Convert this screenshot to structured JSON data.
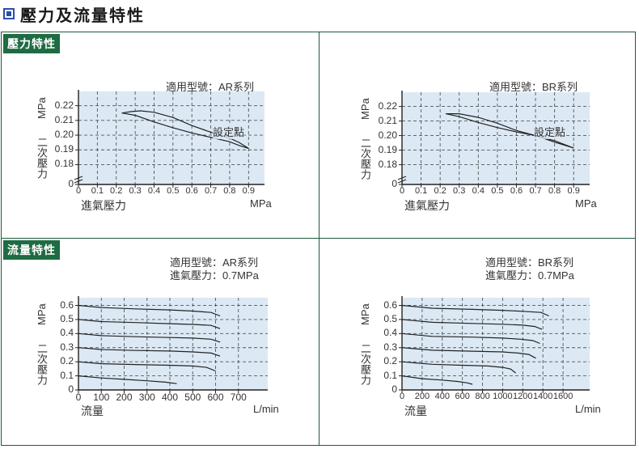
{
  "page": {
    "title": "壓力及流量特性",
    "section_pressure": "壓力特性",
    "section_flow": "流量特性"
  },
  "colors": {
    "accent": "#1f6b43",
    "title_icon": "#2b4fa8",
    "plot_bg": "#dce9f5"
  },
  "chart_data": [
    {
      "type": "line",
      "info": [
        "適用型號：AR系列"
      ],
      "annotation": "設定點",
      "y_unit": "MPa",
      "ylabel": "二次壓力",
      "x_unit": "MPa",
      "xlabel": "進氣壓力",
      "x_ticks": [
        "0",
        "0.1",
        "0.2",
        "0.3",
        "0.4",
        "0.5",
        "0.6",
        "0.7",
        "0.8",
        "0.9"
      ],
      "y_ticks": [
        "0",
        "0.18",
        "0.19",
        "0.20",
        "0.21",
        "0.22"
      ],
      "xlim": [
        0,
        0.95
      ],
      "ylim": [
        0.17,
        0.222
      ],
      "y_break": true,
      "series": [
        {
          "x": [
            0.23,
            0.28,
            0.33,
            0.4,
            0.5,
            0.6,
            0.7,
            0.75,
            0.8,
            0.85,
            0.9
          ],
          "y": [
            0.215,
            0.216,
            0.2165,
            0.2155,
            0.212,
            0.2065,
            0.202,
            0.2,
            0.198,
            0.195,
            0.191
          ]
        },
        {
          "x": [
            0.9,
            0.85,
            0.8,
            0.7,
            0.6,
            0.5,
            0.4,
            0.3,
            0.23
          ],
          "y": [
            0.191,
            0.193,
            0.1955,
            0.1985,
            0.2015,
            0.205,
            0.209,
            0.2135,
            0.215
          ]
        }
      ]
    },
    {
      "type": "line",
      "info": [
        "適用型號：BR系列"
      ],
      "annotation": "設定點",
      "y_unit": "MPa",
      "ylabel": "二次壓力",
      "x_unit": "MPa",
      "xlabel": "進氣壓力",
      "x_ticks": [
        "0",
        "0.1",
        "0.2",
        "0.3",
        "0.4",
        "0.5",
        "0.6",
        "0.7",
        "0.8",
        "0.9"
      ],
      "y_ticks": [
        "0",
        "0.18",
        "0.19",
        "0.20",
        "0.21",
        "0.22"
      ],
      "xlim": [
        0,
        0.95
      ],
      "ylim": [
        0.17,
        0.222
      ],
      "y_break": true,
      "series": [
        {
          "x": [
            0.23,
            0.3,
            0.4,
            0.5,
            0.6,
            0.7,
            0.8,
            0.9
          ],
          "y": [
            0.215,
            0.215,
            0.2125,
            0.2085,
            0.2035,
            0.2,
            0.1965,
            0.1915
          ]
        },
        {
          "x": [
            0.9,
            0.8,
            0.7,
            0.6,
            0.5,
            0.4,
            0.3,
            0.23
          ],
          "y": [
            0.1915,
            0.1955,
            0.2,
            0.2025,
            0.2055,
            0.209,
            0.213,
            0.215
          ]
        }
      ]
    },
    {
      "type": "line",
      "info": [
        "適用型號：AR系列",
        "進氣壓力：0.7MPa"
      ],
      "y_unit": "MPa",
      "ylabel": "二次壓力",
      "x_unit": "L/min",
      "xlabel": "流量",
      "x_ticks": [
        "0",
        "100",
        "200",
        "300",
        "400",
        "500",
        "600",
        "700"
      ],
      "y_ticks": [
        "0",
        "0.1",
        "0.2",
        "0.3",
        "0.4",
        "0.5",
        "0.6"
      ],
      "xlim": [
        0,
        800
      ],
      "ylim": [
        0,
        0.62
      ],
      "series": [
        {
          "x": [
            0,
            100,
            250,
            400,
            500,
            580,
            620
          ],
          "y": [
            0.6,
            0.585,
            0.575,
            0.568,
            0.56,
            0.55,
            0.525
          ]
        },
        {
          "x": [
            0,
            100,
            250,
            400,
            500,
            580,
            620
          ],
          "y": [
            0.5,
            0.485,
            0.478,
            0.47,
            0.465,
            0.458,
            0.435
          ]
        },
        {
          "x": [
            0,
            100,
            250,
            400,
            500,
            580,
            620
          ],
          "y": [
            0.4,
            0.385,
            0.378,
            0.372,
            0.368,
            0.36,
            0.34
          ]
        },
        {
          "x": [
            0,
            100,
            250,
            400,
            500,
            580,
            620
          ],
          "y": [
            0.3,
            0.287,
            0.28,
            0.276,
            0.27,
            0.262,
            0.24
          ]
        },
        {
          "x": [
            0,
            100,
            250,
            400,
            500,
            560,
            600
          ],
          "y": [
            0.2,
            0.186,
            0.18,
            0.175,
            0.17,
            0.16,
            0.135
          ]
        },
        {
          "x": [
            0,
            100,
            200,
            300,
            380,
            430
          ],
          "y": [
            0.1,
            0.085,
            0.075,
            0.065,
            0.055,
            0.045
          ]
        }
      ]
    },
    {
      "type": "line",
      "info": [
        "適用型號：BR系列",
        "進氣壓力：0.7MPa"
      ],
      "y_unit": "MPa",
      "ylabel": "二次壓力",
      "x_unit": "L/min",
      "xlabel": "流量",
      "x_ticks": [
        "0",
        "200",
        "400",
        "600",
        "800",
        "1000",
        "1200",
        "1400",
        "1600"
      ],
      "y_ticks": [
        "0",
        "0.1",
        "0.2",
        "0.3",
        "0.4",
        "0.5",
        "0.6"
      ],
      "xlim": [
        0,
        1800
      ],
      "ylim": [
        0,
        0.62
      ],
      "series": [
        {
          "x": [
            0,
            300,
            700,
            1000,
            1200,
            1380,
            1460
          ],
          "y": [
            0.6,
            0.58,
            0.572,
            0.565,
            0.558,
            0.55,
            0.525
          ]
        },
        {
          "x": [
            0,
            300,
            700,
            1000,
            1200,
            1320,
            1390
          ],
          "y": [
            0.5,
            0.48,
            0.472,
            0.466,
            0.46,
            0.45,
            0.43
          ]
        },
        {
          "x": [
            0,
            300,
            700,
            1000,
            1180,
            1300,
            1370
          ],
          "y": [
            0.4,
            0.38,
            0.375,
            0.368,
            0.36,
            0.35,
            0.33
          ]
        },
        {
          "x": [
            0,
            300,
            700,
            1000,
            1150,
            1260,
            1330
          ],
          "y": [
            0.3,
            0.282,
            0.275,
            0.27,
            0.262,
            0.252,
            0.225
          ]
        },
        {
          "x": [
            0,
            300,
            600,
            850,
            1000,
            1080,
            1130
          ],
          "y": [
            0.2,
            0.182,
            0.175,
            0.17,
            0.16,
            0.148,
            0.12
          ]
        },
        {
          "x": [
            0,
            200,
            400,
            550,
            650,
            700
          ],
          "y": [
            0.1,
            0.08,
            0.07,
            0.06,
            0.05,
            0.04
          ]
        }
      ]
    }
  ]
}
